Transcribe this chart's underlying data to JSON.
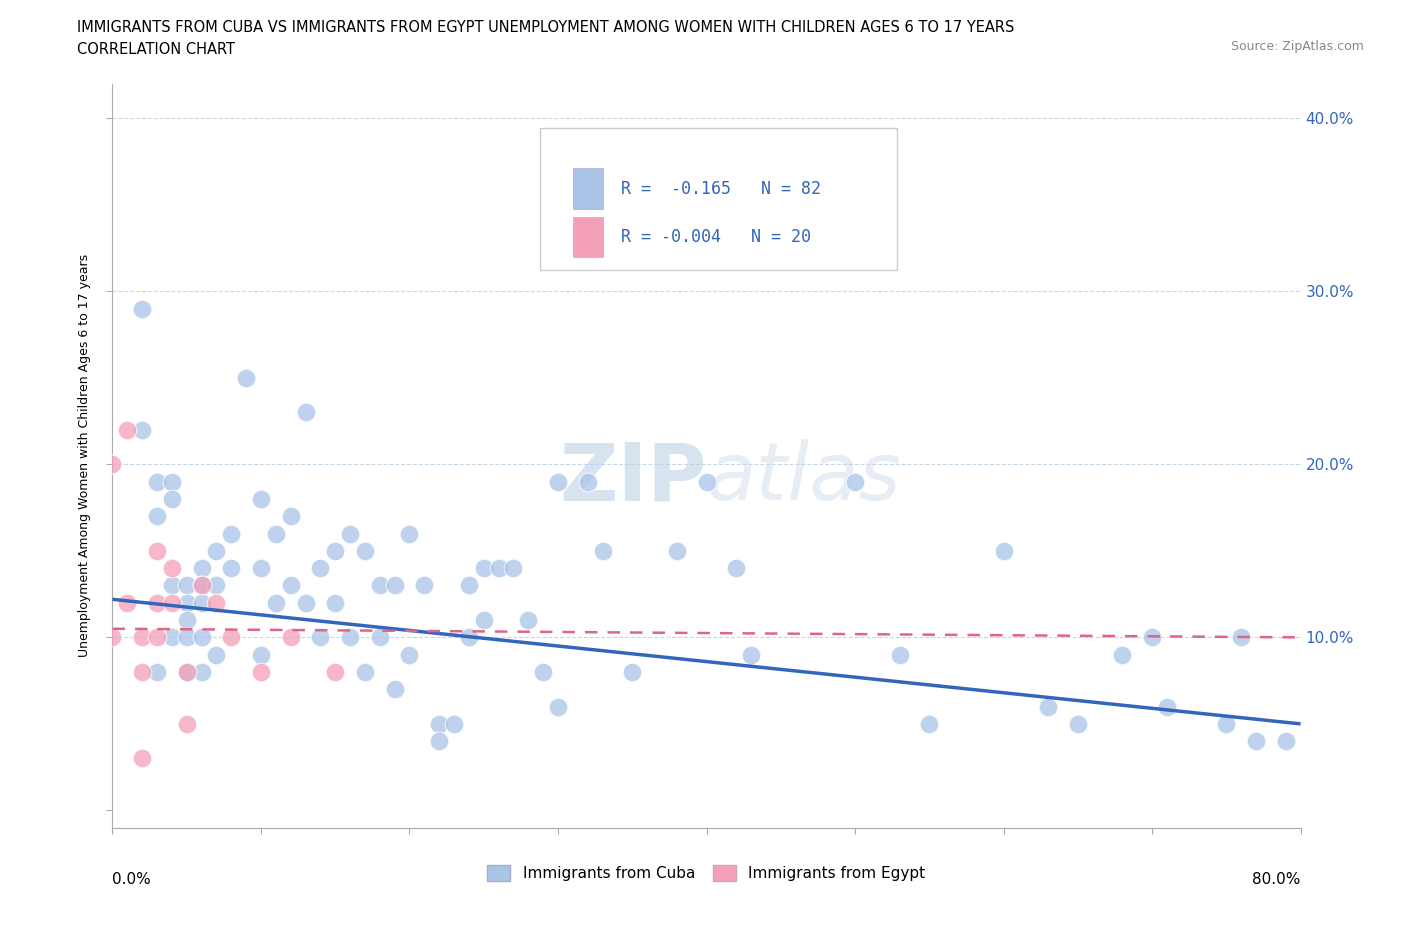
{
  "title_line1": "IMMIGRANTS FROM CUBA VS IMMIGRANTS FROM EGYPT UNEMPLOYMENT AMONG WOMEN WITH CHILDREN AGES 6 TO 17 YEARS",
  "title_line2": "CORRELATION CHART",
  "source_text": "Source: ZipAtlas.com",
  "watermark_zip": "ZIP",
  "watermark_atlas": "atlas",
  "xlabel_bottom_left": "0.0%",
  "xlabel_bottom_right": "80.0%",
  "ylabel": "Unemployment Among Women with Children Ages 6 to 17 years",
  "legend_label1": "Immigrants from Cuba",
  "legend_label2": "Immigrants from Egypt",
  "R_cuba": -0.165,
  "N_cuba": 82,
  "R_egypt": -0.004,
  "N_egypt": 20,
  "xlim": [
    0.0,
    0.8
  ],
  "ylim": [
    -0.01,
    0.42
  ],
  "yticks": [
    0.0,
    0.1,
    0.2,
    0.3,
    0.4
  ],
  "ytick_labels": [
    "",
    "10.0%",
    "20.0%",
    "30.0%",
    "40.0%"
  ],
  "xticks": [
    0.0,
    0.1,
    0.2,
    0.3,
    0.4,
    0.5,
    0.6,
    0.7,
    0.8
  ],
  "color_cuba": "#aac4e8",
  "color_egypt": "#f4a0b8",
  "trend_color_cuba": "#3366bb",
  "trend_color_egypt": "#dd6688",
  "grid_color": "#c8d8e8",
  "background_color": "#ffffff",
  "cuba_x": [
    0.02,
    0.02,
    0.03,
    0.03,
    0.03,
    0.04,
    0.04,
    0.04,
    0.04,
    0.05,
    0.05,
    0.05,
    0.05,
    0.05,
    0.06,
    0.06,
    0.06,
    0.06,
    0.06,
    0.07,
    0.07,
    0.07,
    0.08,
    0.08,
    0.09,
    0.1,
    0.1,
    0.1,
    0.11,
    0.11,
    0.12,
    0.12,
    0.13,
    0.13,
    0.14,
    0.14,
    0.15,
    0.15,
    0.16,
    0.16,
    0.17,
    0.17,
    0.18,
    0.18,
    0.19,
    0.19,
    0.2,
    0.2,
    0.21,
    0.22,
    0.22,
    0.23,
    0.24,
    0.24,
    0.25,
    0.25,
    0.26,
    0.27,
    0.28,
    0.29,
    0.3,
    0.3,
    0.32,
    0.33,
    0.35,
    0.38,
    0.4,
    0.42,
    0.43,
    0.5,
    0.53,
    0.55,
    0.6,
    0.63,
    0.65,
    0.68,
    0.7,
    0.71,
    0.75,
    0.76,
    0.77,
    0.79
  ],
  "cuba_y": [
    0.29,
    0.22,
    0.19,
    0.17,
    0.08,
    0.19,
    0.18,
    0.13,
    0.1,
    0.13,
    0.12,
    0.11,
    0.1,
    0.08,
    0.14,
    0.13,
    0.12,
    0.1,
    0.08,
    0.15,
    0.13,
    0.09,
    0.16,
    0.14,
    0.25,
    0.18,
    0.14,
    0.09,
    0.16,
    0.12,
    0.17,
    0.13,
    0.23,
    0.12,
    0.14,
    0.1,
    0.15,
    0.12,
    0.16,
    0.1,
    0.15,
    0.08,
    0.13,
    0.1,
    0.13,
    0.07,
    0.16,
    0.09,
    0.13,
    0.05,
    0.04,
    0.05,
    0.13,
    0.1,
    0.14,
    0.11,
    0.14,
    0.14,
    0.11,
    0.08,
    0.06,
    0.19,
    0.19,
    0.15,
    0.08,
    0.15,
    0.19,
    0.14,
    0.09,
    0.19,
    0.09,
    0.05,
    0.15,
    0.06,
    0.05,
    0.09,
    0.1,
    0.06,
    0.05,
    0.1,
    0.04,
    0.04
  ],
  "egypt_x": [
    0.0,
    0.0,
    0.01,
    0.01,
    0.02,
    0.02,
    0.02,
    0.03,
    0.03,
    0.03,
    0.04,
    0.04,
    0.05,
    0.05,
    0.06,
    0.07,
    0.08,
    0.1,
    0.12,
    0.15
  ],
  "egypt_y": [
    0.2,
    0.1,
    0.22,
    0.12,
    0.1,
    0.08,
    0.03,
    0.15,
    0.12,
    0.1,
    0.14,
    0.12,
    0.08,
    0.05,
    0.13,
    0.12,
    0.1,
    0.08,
    0.1,
    0.08
  ],
  "cuba_trend_x0": 0.0,
  "cuba_trend_y0": 0.122,
  "cuba_trend_x1": 0.8,
  "cuba_trend_y1": 0.05,
  "egypt_trend_x0": 0.0,
  "egypt_trend_y0": 0.105,
  "egypt_trend_x1": 0.8,
  "egypt_trend_y1": 0.1
}
